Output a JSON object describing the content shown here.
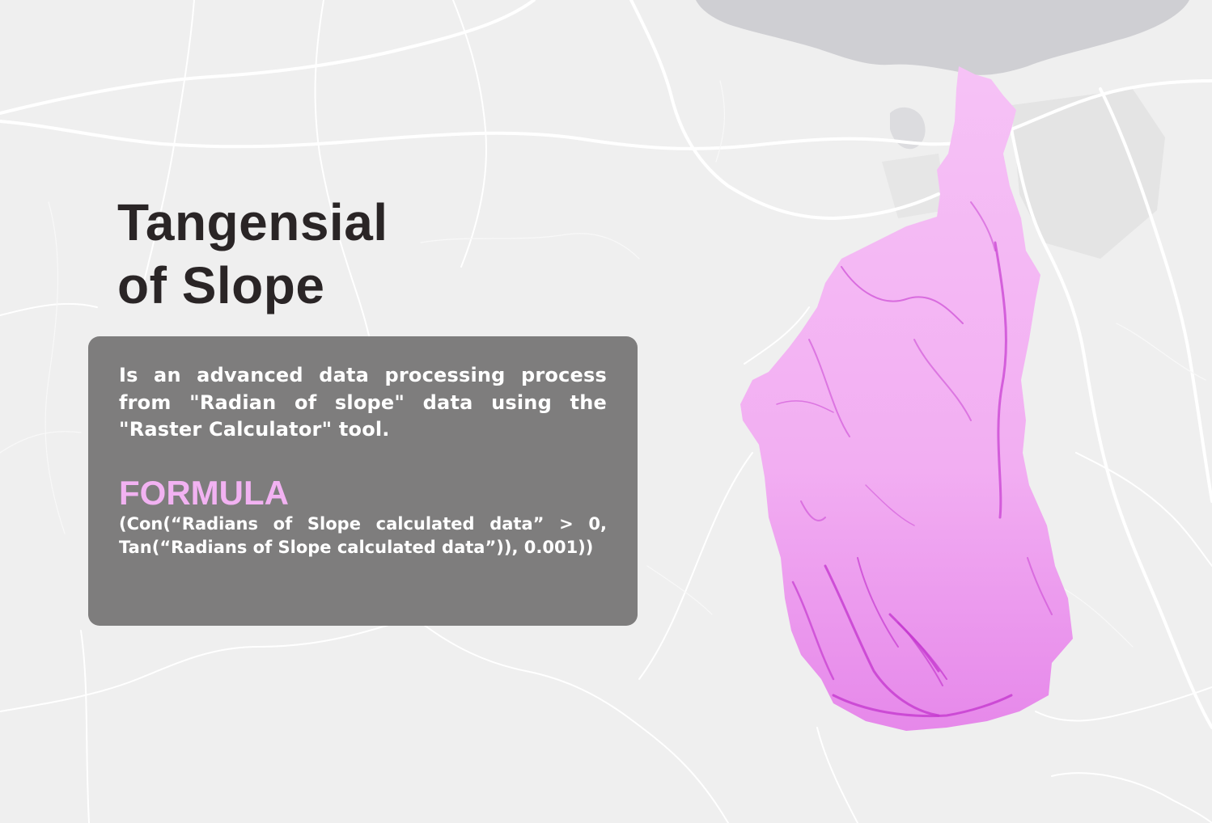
{
  "title": {
    "line1": "Tangensial",
    "line2": "of Slope"
  },
  "info": {
    "description": "Is an advanced data processing process from \"Radian of slope\" data using the \"Raster Calculator\" tool.",
    "formula_heading": "FORMULA",
    "formula": "(Con(“Radians of Slope calculated data” > 0, Tan(“Radians of Slope calculated data”)), 0.001))"
  },
  "map": {
    "basemap_color": "#efefef",
    "road_color": "#ffffff",
    "water_color": "#cfcfd3",
    "urban_color": "#e2e2e2",
    "layer_color": "#f3b4f3",
    "layer_dark_color": "#c63ad0"
  }
}
